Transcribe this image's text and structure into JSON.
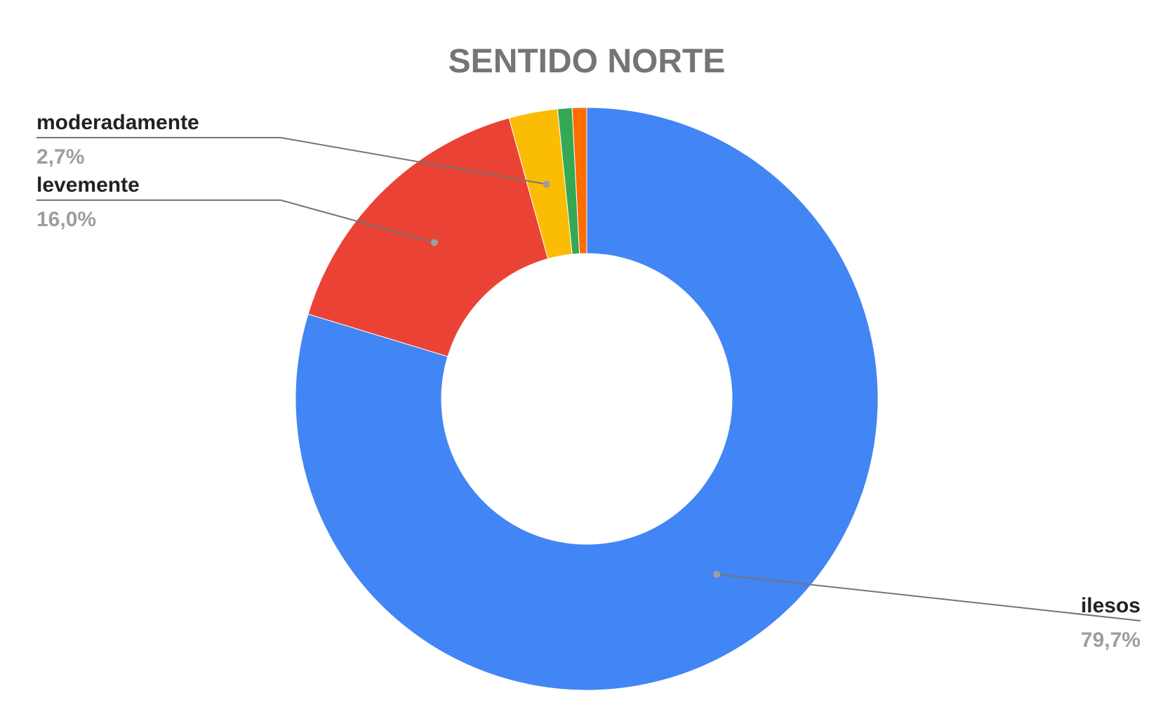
{
  "chart_data": {
    "type": "pie",
    "donut": true,
    "title": "SENTIDO NORTE",
    "legend": "none",
    "slices": [
      {
        "name": "ilesos",
        "value": 79.7,
        "label": "79,7%",
        "color": "#4285f4",
        "show_label": true
      },
      {
        "name": "levemente",
        "value": 16.0,
        "label": "16,0%",
        "color": "#ea4335",
        "show_label": true
      },
      {
        "name": "moderadamente",
        "value": 2.7,
        "label": "2,7%",
        "color": "#fbbc04",
        "show_label": true
      },
      {
        "name": "",
        "value": 0.8,
        "label": "",
        "color": "#34a853",
        "show_label": false
      },
      {
        "name": "",
        "value": 0.8,
        "label": "",
        "color": "#ff6d01",
        "show_label": false
      }
    ]
  }
}
